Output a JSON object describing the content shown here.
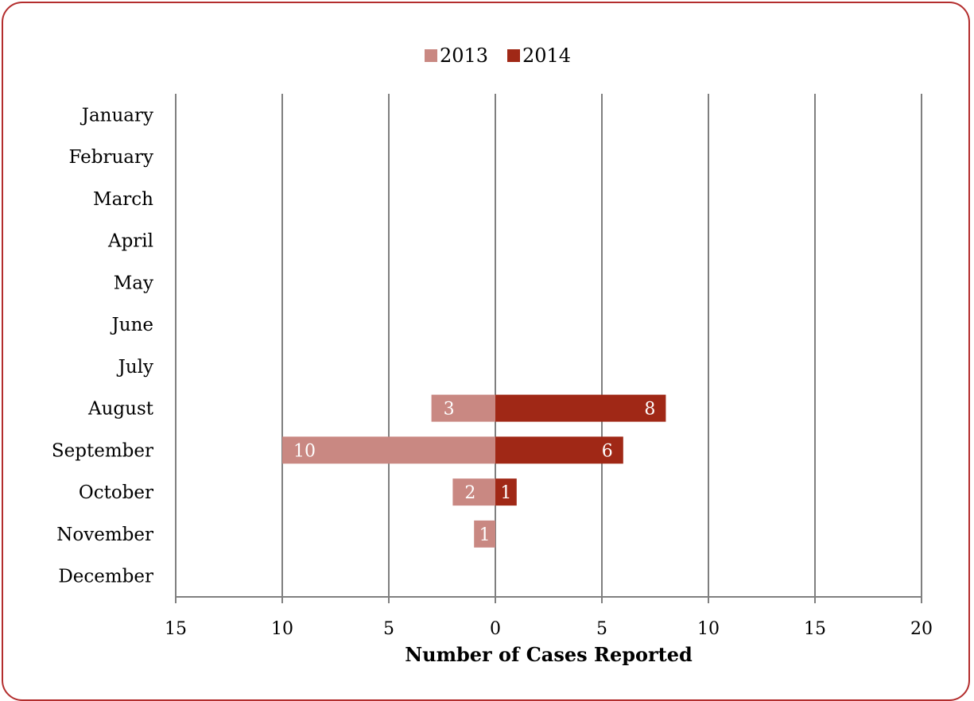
{
  "chart_data": {
    "type": "bar",
    "orientation": "horizontal",
    "layout": "butterfly",
    "categories": [
      "January",
      "February",
      "March",
      "April",
      "May",
      "June",
      "July",
      "August",
      "September",
      "October",
      "November",
      "December"
    ],
    "series": [
      {
        "name": "2013",
        "direction": "left",
        "color": "#c98882",
        "values": [
          0,
          0,
          0,
          0,
          0,
          0,
          0,
          3,
          10,
          2,
          1,
          0
        ]
      },
      {
        "name": "2014",
        "direction": "right",
        "color": "#a02816",
        "values": [
          0,
          0,
          0,
          0,
          0,
          0,
          0,
          8,
          6,
          1,
          0,
          0
        ]
      }
    ],
    "xlim": [
      -15,
      20
    ],
    "xticks": [
      -15,
      -10,
      -5,
      0,
      5,
      10,
      15,
      20
    ],
    "xtick_labels": [
      "15",
      "10",
      "5",
      "0",
      "5",
      "10",
      "15",
      "20"
    ],
    "xlabel": "Number of Cases Reported",
    "title": "",
    "grid": true,
    "legend_position": "top-center",
    "data_labels": true
  },
  "colors": {
    "frame_border": "#b32d2d",
    "grid": "#7f7f7f"
  }
}
